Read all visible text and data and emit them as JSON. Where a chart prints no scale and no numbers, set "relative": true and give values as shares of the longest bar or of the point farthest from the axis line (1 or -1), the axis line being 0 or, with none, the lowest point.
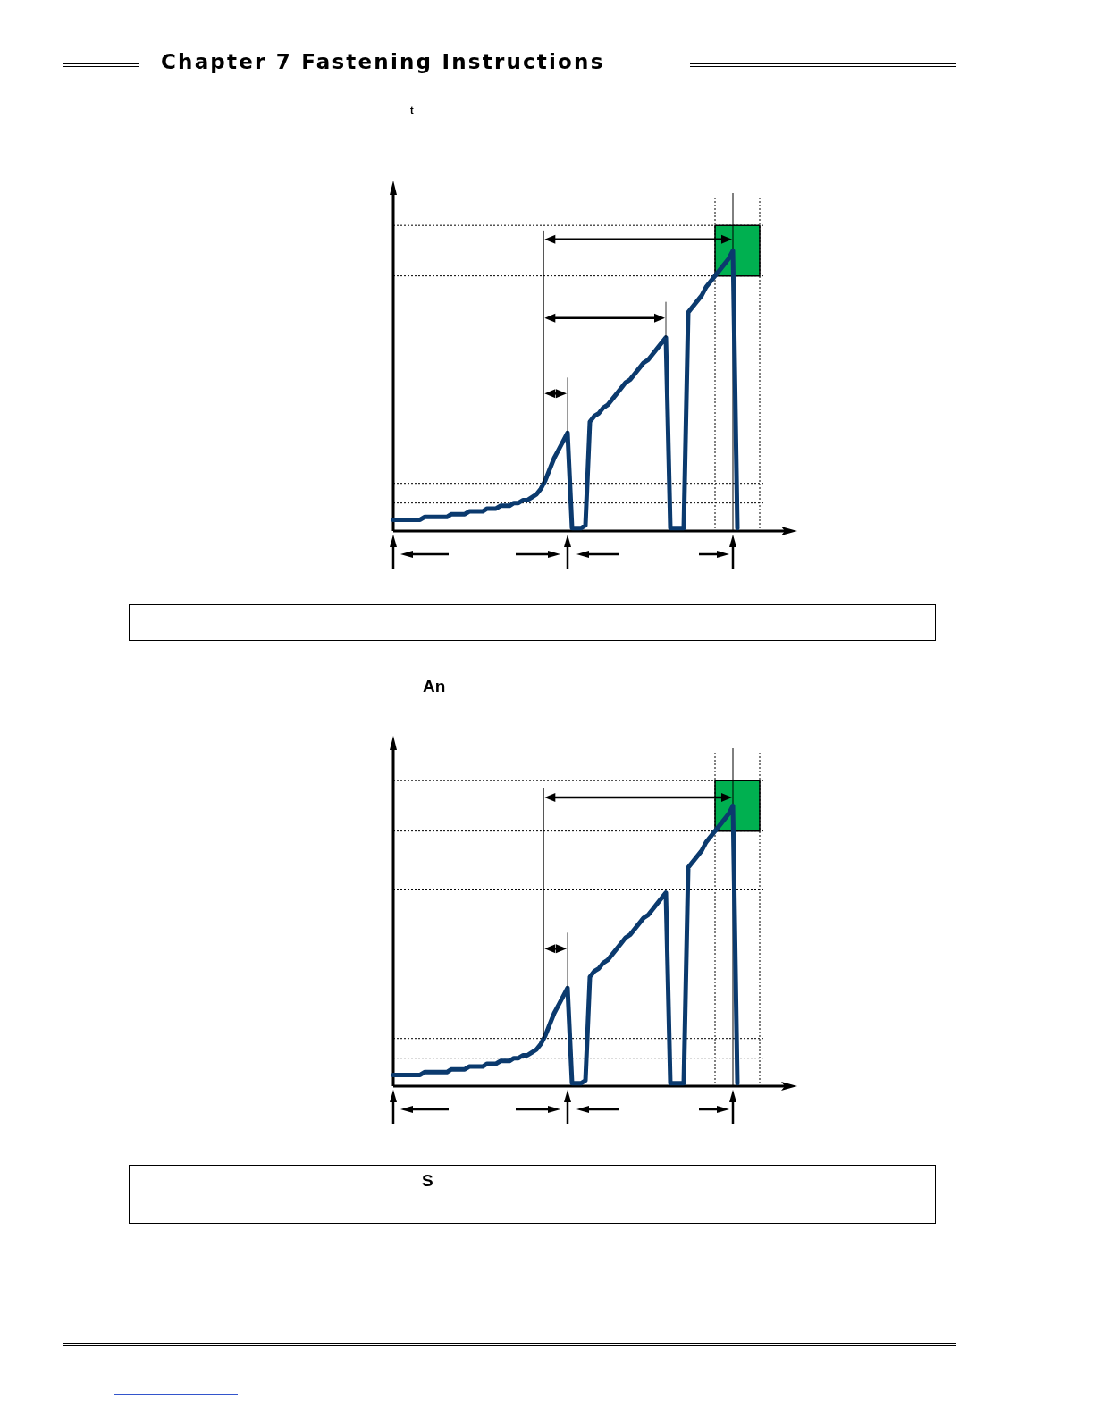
{
  "chart_data": [
    {
      "type": "line",
      "title": "t",
      "annotations": [
        "Chapter 7 Fastening Instructions"
      ],
      "relative": true,
      "tick_labels": false,
      "marker": "none",
      "categories": [
        null,
        null,
        null,
        null,
        null,
        null,
        null,
        null,
        null,
        null,
        null,
        null,
        null,
        null,
        null,
        null,
        null,
        null,
        null,
        null,
        null,
        null,
        null,
        null,
        null,
        null,
        null,
        null,
        null,
        null,
        null,
        null,
        null,
        null,
        null,
        null,
        null,
        null,
        null,
        null,
        null,
        null,
        null,
        null,
        null,
        null,
        null,
        null,
        null,
        null,
        null,
        null,
        null,
        null,
        null,
        null,
        null,
        null,
        null,
        null,
        null,
        null,
        null,
        null,
        null,
        null,
        null,
        null,
        null,
        null,
        null,
        null,
        null,
        null,
        null,
        null,
        null,
        null
      ],
      "series": [
        {
          "color": "#0b3a6e",
          "line_style": "solid",
          "values": [
            0.04,
            0.04,
            0.04,
            0.04,
            0.04,
            0.04,
            0.04,
            0.05,
            0.05,
            0.05,
            0.05,
            0.05,
            0.05,
            0.06,
            0.06,
            0.06,
            0.06,
            0.07,
            0.07,
            0.07,
            0.07,
            0.08,
            0.08,
            0.08,
            0.09,
            0.09,
            0.09,
            0.1,
            0.1,
            0.11,
            0.11,
            0.12,
            0.13,
            0.15,
            0.18,
            0.22,
            0.26,
            0.29,
            0.32,
            0.35,
            0.01,
            0.01,
            0.01,
            0.02,
            0.39,
            0.41,
            0.42,
            0.44,
            0.45,
            0.47,
            0.49,
            0.51,
            0.53,
            0.54,
            0.56,
            0.58,
            0.6,
            0.61,
            0.63,
            0.65,
            0.67,
            0.69,
            0.01,
            0.01,
            0.01,
            0.01,
            0.78,
            0.8,
            0.82,
            0.84,
            0.87,
            0.89,
            0.91,
            0.93,
            0.95,
            0.97,
            1.0,
            0.01
          ]
        }
      ],
      "ref_lines": [
        {
          "axis": "y",
          "value": 1.09,
          "line_style": "dotted"
        },
        {
          "axis": "y",
          "value": 0.91,
          "line_style": "dotted"
        },
        {
          "axis": "y",
          "value": 0.17,
          "line_style": "dotted"
        },
        {
          "axis": "y",
          "value": 0.1,
          "line_style": "dotted"
        }
      ],
      "bands": [
        {
          "axis": "y",
          "from": 0.91,
          "to": 1.09,
          "color": "#00b050"
        }
      ]
    },
    {
      "type": "line",
      "title": "An",
      "annotations": [
        "S"
      ],
      "relative": true,
      "tick_labels": false,
      "marker": "none",
      "categories": [
        null,
        null,
        null,
        null,
        null,
        null,
        null,
        null,
        null,
        null,
        null,
        null,
        null,
        null,
        null,
        null,
        null,
        null,
        null,
        null,
        null,
        null,
        null,
        null,
        null,
        null,
        null,
        null,
        null,
        null,
        null,
        null,
        null,
        null,
        null,
        null,
        null,
        null,
        null,
        null,
        null,
        null,
        null,
        null,
        null,
        null,
        null,
        null,
        null,
        null,
        null,
        null,
        null,
        null,
        null,
        null,
        null,
        null,
        null,
        null,
        null,
        null,
        null,
        null,
        null,
        null,
        null,
        null,
        null,
        null,
        null,
        null,
        null,
        null,
        null,
        null,
        null,
        null
      ],
      "series": [
        {
          "color": "#0b3a6e",
          "line_style": "solid",
          "values": [
            0.04,
            0.04,
            0.04,
            0.04,
            0.04,
            0.04,
            0.04,
            0.05,
            0.05,
            0.05,
            0.05,
            0.05,
            0.05,
            0.06,
            0.06,
            0.06,
            0.06,
            0.07,
            0.07,
            0.07,
            0.07,
            0.08,
            0.08,
            0.08,
            0.09,
            0.09,
            0.09,
            0.1,
            0.1,
            0.11,
            0.11,
            0.12,
            0.13,
            0.15,
            0.18,
            0.22,
            0.26,
            0.29,
            0.32,
            0.35,
            0.01,
            0.01,
            0.01,
            0.02,
            0.39,
            0.41,
            0.42,
            0.44,
            0.45,
            0.47,
            0.49,
            0.51,
            0.53,
            0.54,
            0.56,
            0.58,
            0.6,
            0.61,
            0.63,
            0.65,
            0.67,
            0.69,
            0.01,
            0.01,
            0.01,
            0.01,
            0.78,
            0.8,
            0.82,
            0.84,
            0.87,
            0.89,
            0.91,
            0.93,
            0.95,
            0.97,
            1.0,
            0.01
          ]
        }
      ],
      "ref_lines": [
        {
          "axis": "y",
          "value": 1.09,
          "line_style": "dotted"
        },
        {
          "axis": "y",
          "value": 0.91,
          "line_style": "dotted"
        },
        {
          "axis": "y",
          "value": 0.7,
          "line_style": "dotted"
        },
        {
          "axis": "y",
          "value": 0.17,
          "line_style": "dotted"
        },
        {
          "axis": "y",
          "value": 0.1,
          "line_style": "dotted"
        }
      ],
      "bands": [
        {
          "axis": "y",
          "from": 0.91,
          "to": 1.09,
          "color": "#00b050"
        }
      ]
    }
  ]
}
